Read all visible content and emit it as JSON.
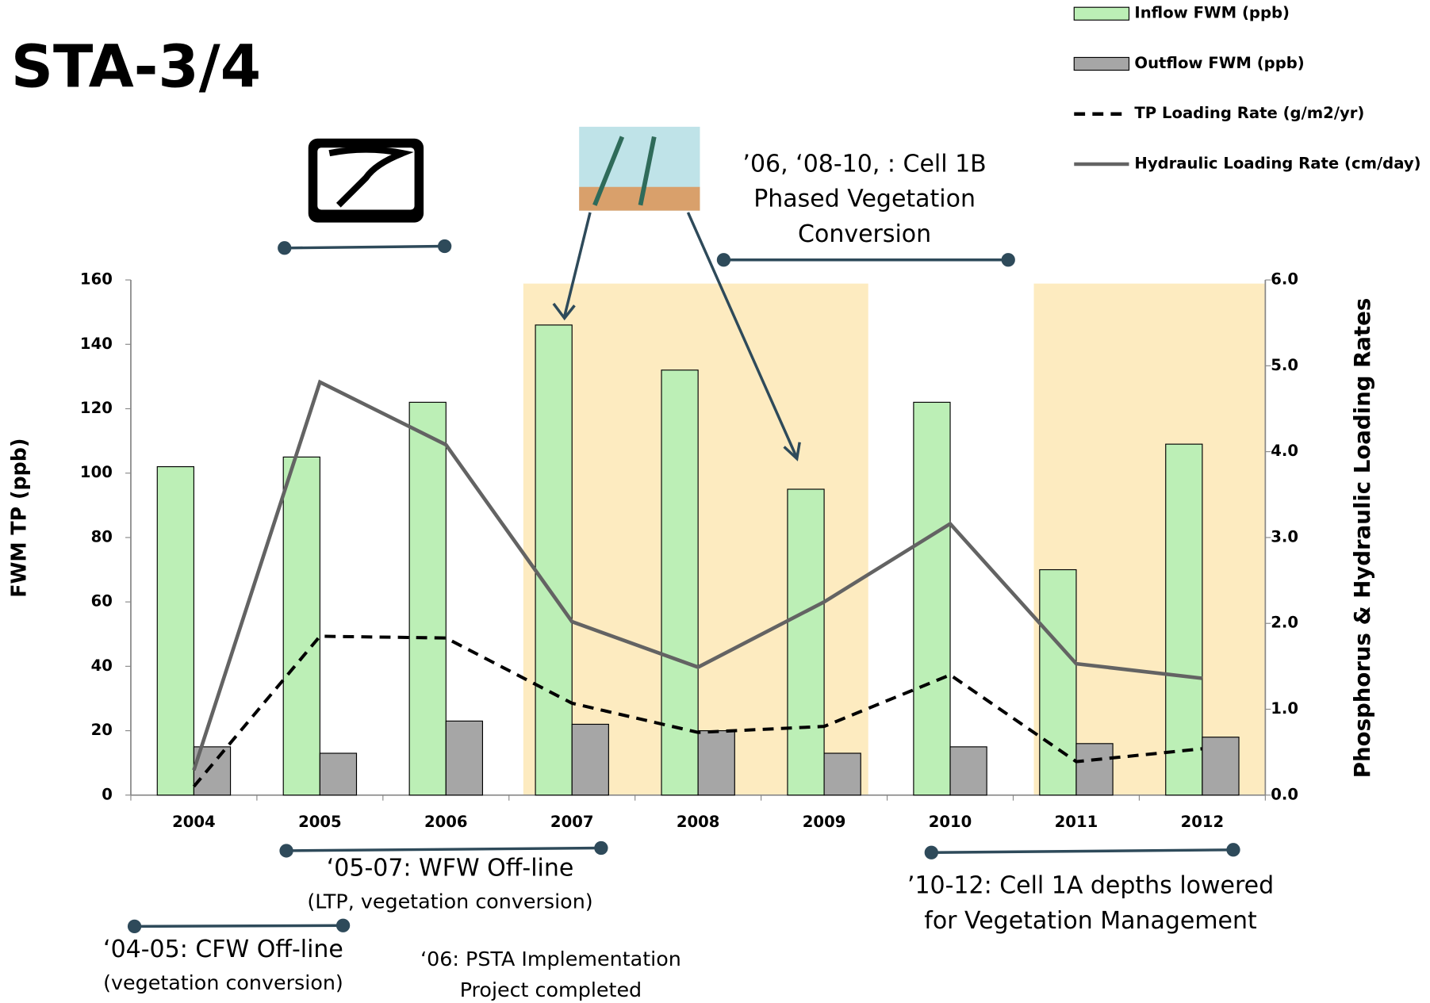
{
  "chart_data": {
    "type": "bar-line",
    "title": "STA-3/4",
    "y_label": "FWM TP (ppb)",
    "y2_label": "Phosphorus & Hydraulic Loading Rates",
    "categories": [
      "2004",
      "2005",
      "2006",
      "2007",
      "2008",
      "2009",
      "2010",
      "2011",
      "2012"
    ],
    "series": [
      {
        "name": "Inflow FWM (ppb)",
        "kind": "bar",
        "color": "#bcefb6",
        "values": [
          102,
          105,
          122,
          146,
          132,
          95,
          122,
          70,
          109
        ]
      },
      {
        "name": "Outflow FWM (ppb)",
        "kind": "bar",
        "color": "#a6a6a6",
        "values": [
          15,
          13,
          23,
          22,
          20,
          13,
          15,
          16,
          18
        ]
      },
      {
        "name": "TP Loading Rate (g/m2/yr)",
        "kind": "line",
        "dash": true,
        "color": "#000000",
        "axis": "y2",
        "values": [
          0.1,
          1.85,
          1.83,
          1.07,
          0.73,
          0.8,
          1.4,
          0.39,
          0.54
        ]
      },
      {
        "name": "Hydraulic Loading Rate (cm/day)",
        "kind": "line",
        "dash": false,
        "color": "#636363",
        "axis": "y2",
        "values": [
          0.29,
          4.81,
          4.08,
          2.02,
          1.49,
          2.25,
          3.16,
          1.53,
          1.36
        ]
      }
    ],
    "ylim": [
      0,
      160
    ],
    "yticks": [
      0,
      20,
      40,
      60,
      80,
      100,
      120,
      140,
      160
    ],
    "y2lim": [
      0,
      6
    ],
    "y2ticks": [
      {
        "value": 0,
        "label": "0.0"
      },
      {
        "value": 1,
        "label": "1.0"
      },
      {
        "value": 2,
        "label": "2.0"
      },
      {
        "value": 3,
        "label": "3.0"
      },
      {
        "value": 4,
        "label": "4.0"
      },
      {
        "value": 5,
        "label": "5.0"
      },
      {
        "value": 6,
        "label": "6.0"
      }
    ],
    "grid": false,
    "annotations": [
      [
        "’06, ‘08-10, : Cell 1B",
        "Phased Vegetation",
        "Conversion"
      ],
      [
        "‘05-07: WFW Off-line",
        "(LTP, vegetation conversion)"
      ],
      [
        "‘04-05: CFW Off-line",
        "(vegetation conversion)"
      ],
      [
        "‘06: PSTA Implementation",
        "Project completed"
      ],
      [
        "’10-12: Cell 1A depths lowered",
        "for Vegetation Management"
      ]
    ]
  }
}
